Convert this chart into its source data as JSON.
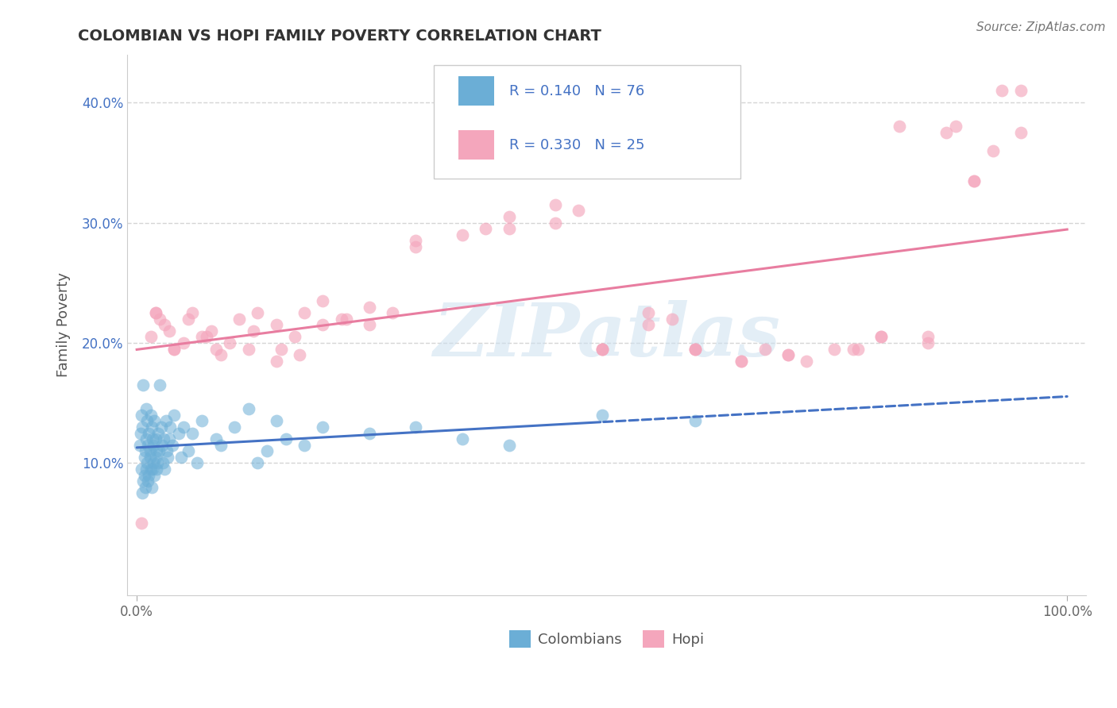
{
  "title": "COLOMBIAN VS HOPI FAMILY POVERTY CORRELATION CHART",
  "source": "Source: ZipAtlas.com",
  "ylabel": "Family Poverty",
  "xlim": [
    -1,
    102
  ],
  "ylim": [
    -1,
    44
  ],
  "yticks": [
    10,
    20,
    30,
    40
  ],
  "yticklabels": [
    "10.0%",
    "20.0%",
    "30.0%",
    "40.0%"
  ],
  "xticks": [
    0,
    100
  ],
  "xticklabels": [
    "0.0%",
    "100.0%"
  ],
  "legend_label1": "Colombians",
  "legend_label2": "Hopi",
  "color_blue": "#6baed6",
  "color_pink": "#f4a6bc",
  "color_blue_line": "#4472c4",
  "color_pink_line": "#e87da0",
  "color_legend_text": "#4472c4",
  "watermark": "ZIPatlas",
  "background_color": "#ffffff",
  "grid_color": "#d5d5d5",
  "title_color": "#333333",
  "colombians_x": [
    0.3,
    0.4,
    0.5,
    0.5,
    0.6,
    0.6,
    0.7,
    0.7,
    0.8,
    0.8,
    0.9,
    0.9,
    1.0,
    1.0,
    1.0,
    1.1,
    1.1,
    1.2,
    1.2,
    1.3,
    1.3,
    1.4,
    1.4,
    1.5,
    1.5,
    1.6,
    1.6,
    1.7,
    1.7,
    1.8,
    1.8,
    1.9,
    1.9,
    2.0,
    2.0,
    2.1,
    2.1,
    2.2,
    2.3,
    2.4,
    2.5,
    2.6,
    2.7,
    2.8,
    2.9,
    3.0,
    3.1,
    3.2,
    3.3,
    3.5,
    3.6,
    3.8,
    4.0,
    4.5,
    4.8,
    5.0,
    5.5,
    6.0,
    6.5,
    7.0,
    8.5,
    9.0,
    10.5,
    12.0,
    13.0,
    14.0,
    15.0,
    16.0,
    18.0,
    20.0,
    25.0,
    30.0,
    35.0,
    40.0,
    50.0,
    60.0
  ],
  "colombians_y": [
    11.5,
    12.5,
    9.5,
    14.0,
    13.0,
    7.5,
    8.5,
    16.5,
    10.5,
    9.0,
    11.0,
    8.0,
    9.5,
    12.0,
    14.5,
    10.0,
    13.5,
    11.5,
    8.5,
    9.0,
    12.5,
    10.5,
    11.0,
    9.5,
    14.0,
    8.0,
    13.0,
    9.5,
    12.0,
    10.0,
    11.5,
    9.0,
    13.5,
    10.5,
    12.0,
    11.0,
    9.5,
    10.0,
    12.5,
    11.0,
    16.5,
    13.0,
    11.5,
    10.0,
    12.0,
    9.5,
    13.5,
    11.0,
    10.5,
    12.0,
    13.0,
    11.5,
    14.0,
    12.5,
    10.5,
    13.0,
    11.0,
    12.5,
    10.0,
    13.5,
    12.0,
    11.5,
    13.0,
    14.5,
    10.0,
    11.0,
    13.5,
    12.0,
    11.5,
    13.0,
    12.5,
    13.0,
    12.0,
    11.5,
    14.0,
    13.5
  ],
  "hopi_x": [
    0.5,
    1.5,
    2.0,
    3.0,
    4.0,
    5.5,
    7.0,
    8.0,
    9.0,
    11.0,
    13.0,
    15.0,
    17.0,
    20.0,
    22.0,
    25.0,
    30.0,
    35.0,
    40.0,
    45.0,
    50.0,
    55.0,
    60.0,
    65.0,
    72.0,
    77.0,
    82.0,
    87.0,
    90.0,
    93.0,
    95.0,
    50.0,
    60.0,
    4.0,
    15.0,
    2.0,
    6.0,
    12.0,
    18.0,
    25.0,
    70.0,
    80.0,
    85.0,
    88.0,
    92.0,
    5.0,
    10.0,
    20.0,
    30.0,
    40.0,
    50.0,
    60.0,
    70.0,
    80.0,
    90.0,
    3.5,
    8.5,
    15.5,
    22.5,
    45.0,
    55.0,
    65.0,
    75.0,
    85.0,
    95.0,
    2.5,
    7.5,
    12.5,
    17.5,
    27.5,
    37.5,
    47.5,
    57.5,
    67.5,
    77.5
  ],
  "hopi_y": [
    5.0,
    20.5,
    22.5,
    21.5,
    19.5,
    22.0,
    20.5,
    21.0,
    19.0,
    22.0,
    22.5,
    21.5,
    20.5,
    23.5,
    22.0,
    23.0,
    28.5,
    29.0,
    30.5,
    31.5,
    19.5,
    22.5,
    19.5,
    18.5,
    18.5,
    19.5,
    38.0,
    37.5,
    33.5,
    41.0,
    37.5,
    19.5,
    19.5,
    19.5,
    18.5,
    22.5,
    22.5,
    19.5,
    22.5,
    21.5,
    19.0,
    20.5,
    20.5,
    38.0,
    36.0,
    20.0,
    20.0,
    21.5,
    28.0,
    29.5,
    19.5,
    19.5,
    19.0,
    20.5,
    33.5,
    21.0,
    19.5,
    19.5,
    22.0,
    30.0,
    21.5,
    18.5,
    19.5,
    20.0,
    41.0,
    22.0,
    20.5,
    21.0,
    19.0,
    22.5,
    29.5,
    31.0,
    22.0,
    19.5,
    19.5
  ]
}
